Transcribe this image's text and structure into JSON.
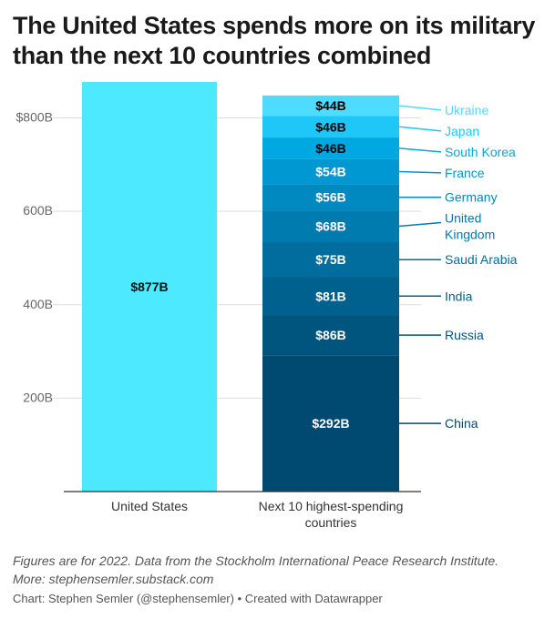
{
  "title": {
    "line1": "The United States spends more on its military",
    "line2": "than the next 10 countries combined"
  },
  "chart_data": {
    "type": "bar",
    "title": "The United States spends more on its military than the next 10 countries combined",
    "categories": [
      "United States",
      "Next 10 highest-spending countries"
    ],
    "category_lines": [
      [
        "United States"
      ],
      [
        "Next 10 highest-spending",
        "countries"
      ]
    ],
    "ylim": [
      0,
      877
    ],
    "yticks": [
      200,
      400,
      600,
      800
    ],
    "ytick_labels": [
      "200B",
      "400B",
      "600B",
      "$800B"
    ],
    "grid": true,
    "us": {
      "name": "United States",
      "value": 877,
      "label": "$877B",
      "color": "#4ce9ff"
    },
    "stack": [
      {
        "country": "China",
        "label_lines": [
          "China"
        ],
        "value": 292,
        "label": "$292B",
        "color": "#004a72",
        "label_color": "#004a72",
        "text_color": "#ffffff"
      },
      {
        "country": "Russia",
        "label_lines": [
          "Russia"
        ],
        "value": 86,
        "label": "$86B",
        "color": "#00557f",
        "label_color": "#00557f",
        "text_color": "#ffffff"
      },
      {
        "country": "India",
        "label_lines": [
          "India"
        ],
        "value": 81,
        "label": "$81B",
        "color": "#00608e",
        "label_color": "#00608e",
        "text_color": "#ffffff"
      },
      {
        "country": "Saudi Arabia",
        "label_lines": [
          "Saudi Arabia"
        ],
        "value": 75,
        "label": "$75B",
        "color": "#006d9f",
        "label_color": "#006d9f",
        "text_color": "#ffffff"
      },
      {
        "country": "United Kingdom",
        "label_lines": [
          "United",
          "Kingdom"
        ],
        "value": 68,
        "label": "$68B",
        "color": "#007bb0",
        "label_color": "#007bb0",
        "text_color": "#ffffff"
      },
      {
        "country": "Germany",
        "label_lines": [
          "Germany"
        ],
        "value": 56,
        "label": "$56B",
        "color": "#0089c1",
        "label_color": "#0089c1",
        "text_color": "#ffffff"
      },
      {
        "country": "France",
        "label_lines": [
          "France"
        ],
        "value": 54,
        "label": "$54B",
        "color": "#0098d2",
        "label_color": "#0098d2",
        "text_color": "#ffffff"
      },
      {
        "country": "South Korea",
        "label_lines": [
          "South Korea"
        ],
        "value": 46,
        "label": "$46B",
        "color": "#00a8e2",
        "label_color": "#00a8e2",
        "text_color": "#000000"
      },
      {
        "country": "Japan",
        "label_lines": [
          "Japan"
        ],
        "value": 46,
        "label": "$46B",
        "color": "#1ec7f7",
        "label_color": "#1ec7f7",
        "text_color": "#000000"
      },
      {
        "country": "Ukraine",
        "label_lines": [
          "Ukraine"
        ],
        "value": 44,
        "label": "$44B",
        "color": "#4ddcff",
        "label_color": "#4ddcff",
        "text_color": "#000000"
      }
    ]
  },
  "footer": {
    "note_line1": "Figures are for 2022. Data from the Stockholm International Peace Research Institute.",
    "note_line2": "More: stephensemler.substack.com",
    "credit": "Chart: Stephen Semler (@stephensemler) • Created with Datawrapper"
  }
}
